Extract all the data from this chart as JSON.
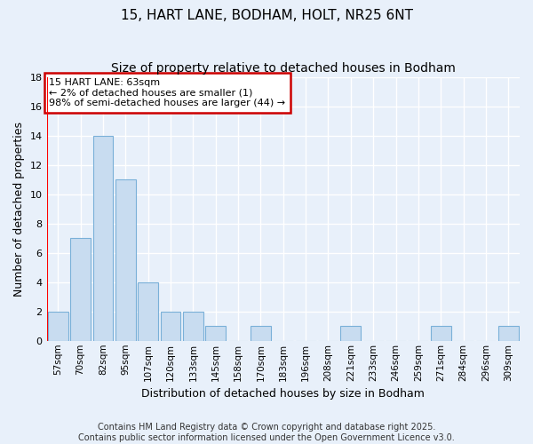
{
  "title1": "15, HART LANE, BODHAM, HOLT, NR25 6NT",
  "title2": "Size of property relative to detached houses in Bodham",
  "xlabel": "Distribution of detached houses by size in Bodham",
  "ylabel": "Number of detached properties",
  "categories": [
    "57sqm",
    "70sqm",
    "82sqm",
    "95sqm",
    "107sqm",
    "120sqm",
    "133sqm",
    "145sqm",
    "158sqm",
    "170sqm",
    "183sqm",
    "196sqm",
    "208sqm",
    "221sqm",
    "233sqm",
    "246sqm",
    "259sqm",
    "271sqm",
    "284sqm",
    "296sqm",
    "309sqm"
  ],
  "values": [
    2,
    7,
    14,
    11,
    4,
    2,
    2,
    1,
    0,
    1,
    0,
    0,
    0,
    1,
    0,
    0,
    0,
    1,
    0,
    0,
    1
  ],
  "bar_color": "#c8dcf0",
  "bar_edge_color": "#7ab0d8",
  "ylim": [
    0,
    18
  ],
  "yticks": [
    0,
    2,
    4,
    6,
    8,
    10,
    12,
    14,
    16,
    18
  ],
  "annotation_text": "15 HART LANE: 63sqm\n← 2% of detached houses are smaller (1)\n98% of semi-detached houses are larger (44) →",
  "annotation_box_facecolor": "#ffffff",
  "annotation_box_edgecolor": "#cc0000",
  "redline_x": -0.5,
  "footer": "Contains HM Land Registry data © Crown copyright and database right 2025.\nContains public sector information licensed under the Open Government Licence v3.0.",
  "bg_color": "#e8f0fa",
  "grid_color": "#ffffff",
  "title_fontsize": 11,
  "subtitle_fontsize": 10,
  "ylabel_fontsize": 9,
  "xlabel_fontsize": 9,
  "tick_fontsize": 7.5,
  "annotation_fontsize": 8,
  "footer_fontsize": 7
}
